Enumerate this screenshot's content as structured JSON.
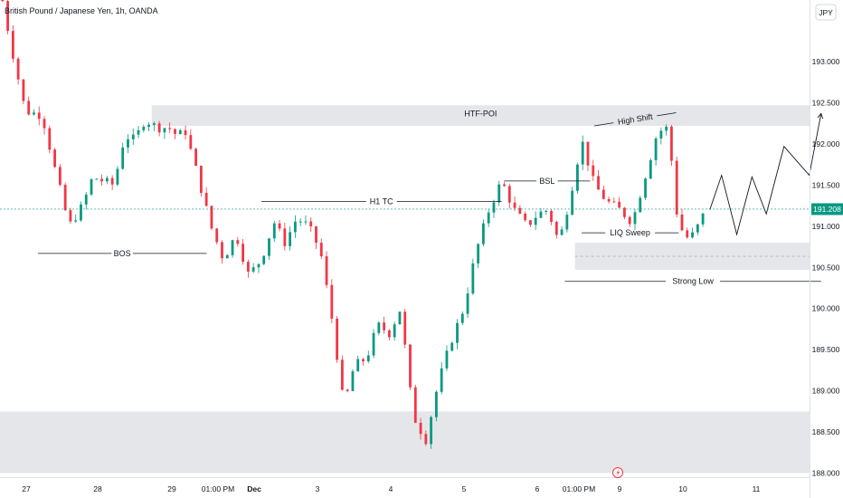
{
  "header": {
    "title": "British Pound / Japanese Yen, 1h, OANDA"
  },
  "currency_badge": "JPY",
  "price_badge": {
    "label": "191.208",
    "value": 191.208
  },
  "colors": {
    "up": "#089981",
    "down": "#f23645",
    "zone": "#dfe0e3",
    "line": "#131722",
    "badge": "#089981"
  },
  "chart_data": {
    "type": "candlestick",
    "title": "British Pound / Japanese Yen, 1h, OANDA",
    "y_axis": {
      "ticks": [
        193.0,
        192.5,
        192.0,
        191.5,
        191.0,
        190.5,
        190.0,
        189.5,
        189.0,
        188.5,
        188.0
      ],
      "labels": [
        "193.000",
        "192.500",
        "192.000",
        "191.500",
        "191.000",
        "190.500",
        "190.000",
        "189.500",
        "189.000",
        "188.500",
        "188.000"
      ],
      "range": [
        187.95,
        193.75
      ]
    },
    "x_axis": {
      "labels": [
        "27",
        "28",
        "29",
        "01:00 PM",
        "Dec",
        "3",
        "4",
        "5",
        "6",
        "01:00 PM",
        "9",
        "10",
        "11"
      ],
      "range": [
        0,
        100
      ]
    },
    "last_price": 191.208,
    "path": [
      [
        0.0,
        193.9
      ],
      [
        1.3,
        193.2
      ],
      [
        3.0,
        192.4
      ],
      [
        5.0,
        192.35
      ],
      [
        6.5,
        191.7
      ],
      [
        8.2,
        191.0
      ],
      [
        9.8,
        191.25
      ],
      [
        11.0,
        191.6
      ],
      [
        13.5,
        191.5
      ],
      [
        14.8,
        192.1
      ],
      [
        16.0,
        192.05
      ],
      [
        17.2,
        192.3
      ],
      [
        18.6,
        192.2
      ],
      [
        20.0,
        192.2
      ],
      [
        21.0,
        192.1
      ],
      [
        22.0,
        192.15
      ],
      [
        23.5,
        191.6
      ],
      [
        25.0,
        191.0
      ],
      [
        26.5,
        190.6
      ],
      [
        28.0,
        190.9
      ],
      [
        29.5,
        190.4
      ],
      [
        31.0,
        190.6
      ],
      [
        32.5,
        191.05
      ],
      [
        33.8,
        190.8
      ],
      [
        35.2,
        191.1
      ],
      [
        36.6,
        191.0
      ],
      [
        38.0,
        190.7
      ],
      [
        39.5,
        189.8
      ],
      [
        40.8,
        188.8
      ],
      [
        42.0,
        189.3
      ],
      [
        43.5,
        189.4
      ],
      [
        44.8,
        189.8
      ],
      [
        46.2,
        189.7
      ],
      [
        47.5,
        190.0
      ],
      [
        49.0,
        188.7
      ],
      [
        50.5,
        188.4
      ],
      [
        52.0,
        189.1
      ],
      [
        53.5,
        189.6
      ],
      [
        55.0,
        190.0
      ],
      [
        56.5,
        190.7
      ],
      [
        58.0,
        191.2
      ],
      [
        59.5,
        191.55
      ],
      [
        61.0,
        191.2
      ],
      [
        62.5,
        191.0
      ],
      [
        63.8,
        191.15
      ],
      [
        65.0,
        191.2
      ],
      [
        66.3,
        190.8
      ],
      [
        67.5,
        191.3
      ],
      [
        69.0,
        192.05
      ],
      [
        70.5,
        191.5
      ],
      [
        72.0,
        191.3
      ],
      [
        73.5,
        191.2
      ],
      [
        75.0,
        191.05
      ],
      [
        76.5,
        191.6
      ],
      [
        78.0,
        192.15
      ],
      [
        79.3,
        192.2
      ],
      [
        80.2,
        191.2
      ],
      [
        81.2,
        190.85
      ],
      [
        82.3,
        190.9
      ],
      [
        83.5,
        191.15
      ]
    ],
    "projection": [
      [
        84.2,
        191.2
      ],
      [
        85.6,
        191.62
      ],
      [
        87.4,
        190.9
      ],
      [
        89.2,
        191.6
      ],
      [
        90.9,
        191.15
      ],
      [
        93.0,
        191.97
      ],
      [
        96.0,
        191.62
      ],
      [
        97.4,
        192.37
      ]
    ],
    "zones": [
      {
        "label": "HTF-POI",
        "x": [
          18.0,
          97.4
        ],
        "y": [
          192.22,
          192.47
        ]
      },
      {
        "label": "",
        "x": [
          68.2,
          96.4
        ],
        "y": [
          190.47,
          190.8
        ]
      },
      {
        "label": "",
        "x": [
          0.0,
          110.0
        ],
        "y": [
          188.0,
          188.75
        ]
      }
    ],
    "levels": [
      {
        "label": "BOS",
        "x": [
          4.5,
          24.5
        ],
        "y": 190.67
      },
      {
        "label": "H1 TC",
        "x": [
          31.0,
          59.5
        ],
        "y": 191.3
      },
      {
        "label": "BSL",
        "x": [
          59.8,
          70.0
        ],
        "y": 191.55
      },
      {
        "label": "LIQ Sweep",
        "x": [
          69.0,
          80.5
        ],
        "y": 190.92
      },
      {
        "label": "Strong Low",
        "x": [
          67.0,
          97.4
        ],
        "y": 190.33
      }
    ],
    "high_shift": {
      "label": "High Shift",
      "from": [
        70.5,
        192.22
      ],
      "to": [
        80.2,
        192.38
      ]
    }
  }
}
